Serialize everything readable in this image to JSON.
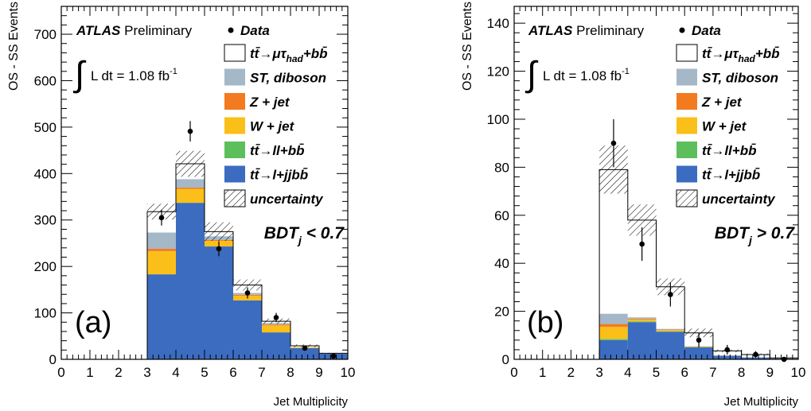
{
  "legend": {
    "atlas": "ATLAS",
    "preliminary": "Preliminary",
    "data_label": "Data",
    "lumi": "L dt = 1.08 fb",
    "lumi_sup": "-1",
    "entries": [
      {
        "key": "ttbar_mutau",
        "label": "tt̄→μτ",
        "sub": "had",
        "tail": "+bb̄",
        "color": "#ffffff"
      },
      {
        "key": "st_diboson",
        "label": "ST, diboson",
        "color": "#a4b8c8"
      },
      {
        "key": "z_jet",
        "label": "Z + jet",
        "color": "#f47a20"
      },
      {
        "key": "w_jet",
        "label": "W + jet",
        "color": "#fbbf1a"
      },
      {
        "key": "ttbar_ll",
        "label": "tt̄→ll+bb̄",
        "color": "#5cbf5c"
      },
      {
        "key": "ttbar_l",
        "label": "tt̄→l+jjbb̄",
        "color": "#3b6cc0"
      },
      {
        "key": "uncertainty",
        "label": "uncertainty",
        "color": "hatch"
      }
    ]
  },
  "chart_data": [
    {
      "type": "bar",
      "panel_label": "(a)",
      "region_label": "BDT",
      "region_sub": "j",
      "region_cut": " < 0.7",
      "xlabel": "Jet Multiplicity",
      "ylabel": "OS - SS Events",
      "xlim": [
        0,
        10
      ],
      "ylim": [
        0,
        760
      ],
      "xticks": [
        "0",
        "1",
        "2",
        "3",
        "4",
        "5",
        "6",
        "7",
        "8",
        "9",
        "10"
      ],
      "yticks": [
        0,
        100,
        200,
        300,
        400,
        500,
        600,
        700
      ],
      "bins": [
        3,
        4,
        5,
        6,
        7,
        8,
        9,
        10
      ],
      "stack": [
        {
          "name": "tt̄→l+jjbb̄",
          "values": [
            183,
            337,
            243,
            127,
            58,
            24,
            12
          ]
        },
        {
          "name": "tt̄→ll+bb̄",
          "values": [
            0,
            0,
            0,
            0,
            0,
            0,
            0
          ]
        },
        {
          "name": "W + jet",
          "values": [
            50,
            30,
            12,
            10,
            15,
            2,
            0
          ]
        },
        {
          "name": "Z + jet",
          "values": [
            5,
            3,
            2,
            2,
            2,
            0,
            0
          ]
        },
        {
          "name": "ST, diboson",
          "values": [
            35,
            18,
            8,
            4,
            3,
            0,
            0
          ]
        },
        {
          "name": "tt̄→μτhad+bb̄",
          "values": [
            45,
            33,
            10,
            17,
            4,
            3,
            1
          ]
        }
      ],
      "uncertainty": [
        17,
        28,
        20,
        12,
        6,
        3,
        1
      ],
      "data": [
        {
          "x": 3.5,
          "y": 305,
          "err": 17
        },
        {
          "x": 4.5,
          "y": 491,
          "err": 22
        },
        {
          "x": 5.5,
          "y": 238,
          "err": 16
        },
        {
          "x": 6.5,
          "y": 143,
          "err": 12
        },
        {
          "x": 7.5,
          "y": 90,
          "err": 10
        },
        {
          "x": 8.5,
          "y": 24,
          "err": 5
        },
        {
          "x": 9.5,
          "y": 7,
          "err": 3
        }
      ]
    },
    {
      "type": "bar",
      "panel_label": "(b)",
      "region_label": "BDT",
      "region_sub": "j",
      "region_cut": " > 0.7",
      "xlabel": "Jet Multiplicity",
      "ylabel": "OS - SS Events",
      "xlim": [
        0,
        10
      ],
      "ylim": [
        0,
        147
      ],
      "xticks": [
        "0",
        "1",
        "2",
        "3",
        "4",
        "5",
        "6",
        "7",
        "8",
        "9",
        "10"
      ],
      "yticks": [
        0,
        20,
        40,
        60,
        80,
        100,
        120,
        140
      ],
      "bins": [
        3,
        4,
        5,
        6,
        7,
        8,
        9,
        10
      ],
      "stack": [
        {
          "name": "tt̄→l+jjbb̄",
          "values": [
            8,
            15.5,
            11.5,
            5,
            1.5,
            0.8,
            0.3
          ]
        },
        {
          "name": "tt̄→ll+bb̄",
          "values": [
            0.5,
            0.3,
            0.2,
            0.1,
            0,
            0,
            0
          ]
        },
        {
          "name": "W + jet",
          "values": [
            5,
            0.8,
            0.5,
            0.2,
            0.1,
            0,
            0
          ]
        },
        {
          "name": "Z + jet",
          "values": [
            1.2,
            0.3,
            0.2,
            0.1,
            0,
            0,
            0
          ]
        },
        {
          "name": "ST, diboson",
          "values": [
            4.3,
            0.6,
            0.3,
            0.1,
            0,
            0,
            0
          ]
        },
        {
          "name": "tt̄→μτhad+bb̄",
          "values": [
            60,
            40.5,
            17.5,
            5.5,
            1.9,
            1.2,
            0.3
          ]
        }
      ],
      "uncertainty": [
        10,
        6.5,
        3.5,
        1.8,
        0.6,
        0.4,
        0.2
      ],
      "data": [
        {
          "x": 3.5,
          "y": 90,
          "err": 10
        },
        {
          "x": 4.5,
          "y": 48,
          "err": 7
        },
        {
          "x": 5.5,
          "y": 27,
          "err": 5
        },
        {
          "x": 6.5,
          "y": 8,
          "err": 3
        },
        {
          "x": 7.5,
          "y": 4,
          "err": 2
        },
        {
          "x": 8.5,
          "y": 2,
          "err": 1.4
        },
        {
          "x": 9.5,
          "y": 0,
          "err": 0
        }
      ]
    }
  ]
}
